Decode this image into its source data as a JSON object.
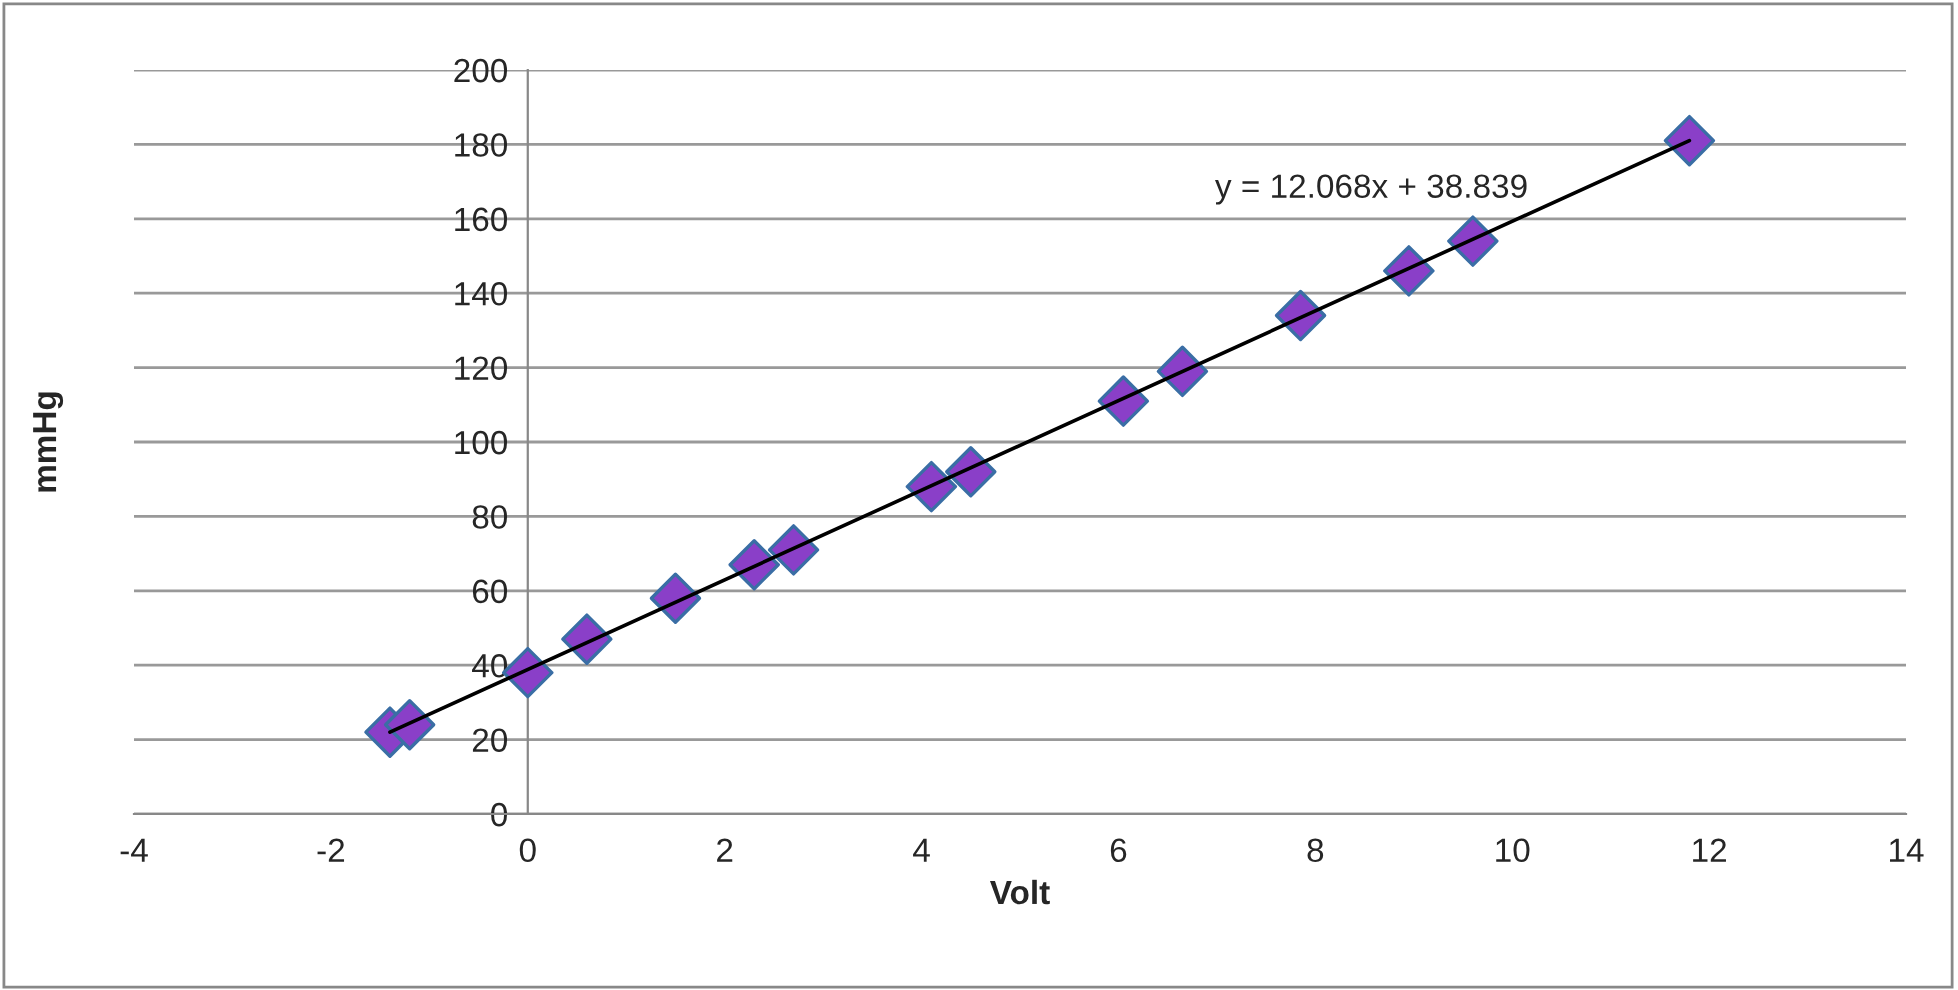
{
  "chart_data": {
    "type": "scatter",
    "xlabel": "Volt",
    "ylabel": "mmHg",
    "xlim": [
      -4,
      14
    ],
    "xticks": [
      -4,
      -2,
      0,
      2,
      4,
      6,
      8,
      10,
      12,
      14
    ],
    "ylim": [
      0,
      200
    ],
    "yticks": [
      0,
      20,
      40,
      60,
      80,
      100,
      120,
      140,
      160,
      180,
      200
    ],
    "grid": "y",
    "legend": false,
    "marker": "diamond",
    "series": [
      {
        "color": "#8a3fc8",
        "x": [
          -1.4,
          -1.2,
          0,
          0.6,
          1.5,
          2.3,
          2.7,
          4.1,
          4.5,
          6.05,
          6.65,
          7.85,
          8.95,
          9.6,
          11.8
        ],
        "values": [
          22,
          24,
          38,
          47,
          58,
          67,
          71,
          88,
          92,
          111,
          119,
          134,
          146,
          154,
          181
        ]
      },
      {
        "type": "line",
        "color": "#000000",
        "x": [
          -1.4,
          11.8
        ],
        "values": [
          22,
          181
        ],
        "marker": "none",
        "line_style": "solid"
      }
    ],
    "annotations": [
      "y = 12.068x + 38.839"
    ]
  }
}
